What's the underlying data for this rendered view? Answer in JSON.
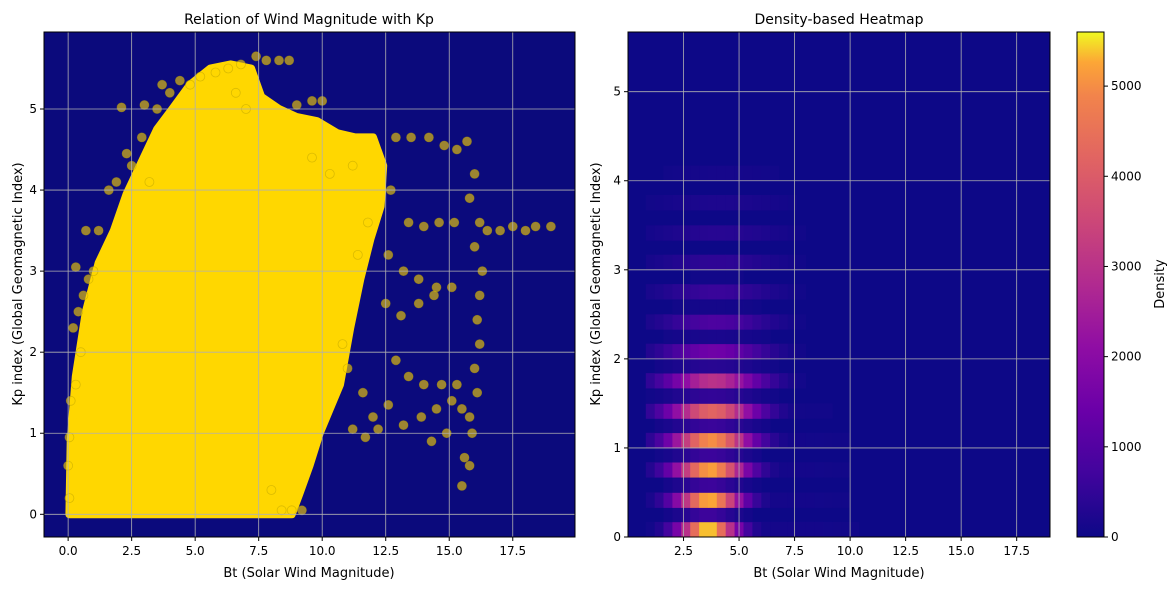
{
  "chart_data": [
    {
      "type": "scatter",
      "title": "Relation of Wind Magnitude with Kp",
      "xlabel": "Bt (Solar Wind Magnitude)",
      "ylabel": "Kp index (Global Geomagnetic Index)",
      "xlim": [
        -0.95,
        19.95
      ],
      "ylim": [
        -0.28,
        5.95
      ],
      "xticks": [
        0.0,
        2.5,
        5.0,
        7.5,
        10.0,
        12.5,
        15.0,
        17.5
      ],
      "xtick_labels": [
        "0.0",
        "2.5",
        "5.0",
        "7.5",
        "10.0",
        "12.5",
        "15.0",
        "17.5"
      ],
      "yticks": [
        0,
        1,
        2,
        3,
        4,
        5
      ],
      "ytick_labels": [
        "0",
        "1",
        "2",
        "3",
        "4",
        "5"
      ],
      "grid": true,
      "background_color": "#0b0a7c",
      "point_color": "#ffd700",
      "series": [
        {
          "main_cloud_outline": [
            [
              0.05,
              0.0
            ],
            [
              0.1,
              0.9
            ],
            [
              0.3,
              1.7
            ],
            [
              0.7,
              2.5
            ],
            [
              1.2,
              3.1
            ],
            [
              1.8,
              3.5
            ],
            [
              2.3,
              3.95
            ],
            [
              2.9,
              4.35
            ],
            [
              3.5,
              4.75
            ],
            [
              4.1,
              5.0
            ],
            [
              4.8,
              5.3
            ],
            [
              5.6,
              5.5
            ],
            [
              6.4,
              5.55
            ],
            [
              7.2,
              5.5
            ],
            [
              7.6,
              5.15
            ],
            [
              8.3,
              5.0
            ],
            [
              9.0,
              4.9
            ],
            [
              9.8,
              4.85
            ],
            [
              10.6,
              4.7
            ],
            [
              11.3,
              4.65
            ],
            [
              12.0,
              4.65
            ],
            [
              12.4,
              4.3
            ],
            [
              12.3,
              3.8
            ],
            [
              11.9,
              3.4
            ],
            [
              11.5,
              2.9
            ],
            [
              11.1,
              2.3
            ],
            [
              10.7,
              1.6
            ],
            [
              10.3,
              1.3
            ],
            [
              9.9,
              1.0
            ],
            [
              9.5,
              0.6
            ],
            [
              9.1,
              0.25
            ],
            [
              8.8,
              0.0
            ]
          ],
          "points": [
            [
              15.7,
              4.6
            ],
            [
              16.0,
              4.2
            ],
            [
              16.2,
              3.6
            ],
            [
              16.3,
              3.0
            ],
            [
              16.1,
              2.4
            ],
            [
              16.0,
              1.8
            ],
            [
              15.8,
              1.2
            ],
            [
              15.6,
              0.7
            ],
            [
              15.5,
              0.35
            ],
            [
              15.8,
              0.6
            ],
            [
              15.9,
              1.0
            ],
            [
              16.1,
              1.5
            ],
            [
              16.2,
              2.1
            ],
            [
              16.2,
              2.7
            ],
            [
              16.0,
              3.3
            ],
            [
              15.8,
              3.9
            ],
            [
              15.3,
              4.5
            ],
            [
              14.8,
              4.55
            ],
            [
              14.2,
              4.65
            ],
            [
              13.5,
              4.65
            ],
            [
              12.9,
              4.65
            ],
            [
              12.7,
              4.0
            ],
            [
              13.4,
              3.6
            ],
            [
              14.0,
              3.55
            ],
            [
              14.6,
              3.6
            ],
            [
              15.2,
              3.6
            ],
            [
              16.5,
              3.5
            ],
            [
              17.0,
              3.5
            ],
            [
              17.5,
              3.55
            ],
            [
              18.0,
              3.5
            ],
            [
              18.4,
              3.55
            ],
            [
              19.0,
              3.55
            ],
            [
              12.6,
              3.2
            ],
            [
              13.2,
              3.0
            ],
            [
              13.8,
              2.9
            ],
            [
              14.5,
              2.8
            ],
            [
              15.1,
              2.8
            ],
            [
              12.5,
              2.6
            ],
            [
              13.1,
              2.45
            ],
            [
              13.8,
              2.6
            ],
            [
              14.4,
              2.7
            ],
            [
              12.9,
              1.9
            ],
            [
              13.4,
              1.7
            ],
            [
              14.0,
              1.6
            ],
            [
              14.7,
              1.6
            ],
            [
              15.3,
              1.6
            ],
            [
              11.6,
              1.5
            ],
            [
              12.0,
              1.2
            ],
            [
              12.6,
              1.35
            ],
            [
              13.2,
              1.1
            ],
            [
              13.9,
              1.2
            ],
            [
              14.5,
              1.3
            ],
            [
              15.1,
              1.4
            ],
            [
              15.5,
              1.3
            ],
            [
              14.9,
              1.0
            ],
            [
              14.3,
              0.9
            ],
            [
              12.2,
              1.05
            ],
            [
              11.7,
              0.95
            ],
            [
              11.2,
              1.05
            ],
            [
              10.8,
              2.1
            ],
            [
              11.0,
              1.8
            ],
            [
              11.8,
              3.6
            ],
            [
              11.4,
              3.2
            ],
            [
              11.2,
              4.3
            ],
            [
              10.3,
              4.2
            ],
            [
              9.6,
              4.4
            ],
            [
              9.0,
              5.05
            ],
            [
              9.6,
              5.1
            ],
            [
              10.0,
              5.1
            ],
            [
              8.7,
              5.6
            ],
            [
              8.3,
              5.6
            ],
            [
              7.8,
              5.6
            ],
            [
              7.4,
              5.65
            ],
            [
              6.8,
              5.55
            ],
            [
              6.3,
              5.5
            ],
            [
              5.8,
              5.45
            ],
            [
              5.2,
              5.4
            ],
            [
              4.8,
              5.3
            ],
            [
              4.4,
              5.35
            ],
            [
              3.7,
              5.3
            ],
            [
              3.5,
              5.0
            ],
            [
              3.0,
              5.05
            ],
            [
              2.1,
              5.02
            ],
            [
              2.3,
              4.45
            ],
            [
              2.5,
              4.3
            ],
            [
              3.2,
              4.1
            ],
            [
              2.9,
              4.65
            ],
            [
              4.0,
              5.2
            ],
            [
              1.6,
              4.0
            ],
            [
              1.9,
              4.1
            ],
            [
              1.2,
              3.5
            ],
            [
              0.7,
              3.5
            ],
            [
              0.3,
              3.05
            ],
            [
              0.6,
              2.7
            ],
            [
              0.4,
              2.5
            ],
            [
              0.2,
              2.3
            ],
            [
              0.8,
              2.9
            ],
            [
              1.0,
              3.0
            ],
            [
              0.5,
              2.0
            ],
            [
              0.3,
              1.6
            ],
            [
              0.1,
              1.4
            ],
            [
              0.05,
              0.95
            ],
            [
              0.0,
              0.6
            ],
            [
              0.05,
              0.2
            ],
            [
              8.4,
              0.05
            ],
            [
              8.0,
              0.3
            ],
            [
              8.8,
              0.05
            ],
            [
              9.2,
              0.05
            ],
            [
              6.6,
              5.2
            ],
            [
              7.0,
              5.0
            ]
          ]
        }
      ]
    },
    {
      "type": "heatmap",
      "title": "Density-based Heatmap",
      "xlabel": "Bt (Solar Wind Magnitude)",
      "ylabel": "Kp index (Global Geomagnetic Index)",
      "xlim": [
        0.0,
        19.0
      ],
      "ylim": [
        0.0,
        5.67
      ],
      "xticks": [
        2.5,
        5.0,
        7.5,
        10.0,
        12.5,
        15.0,
        17.5
      ],
      "xtick_labels": [
        "2.5",
        "5.0",
        "7.5",
        "10.0",
        "12.5",
        "15.0",
        "17.5"
      ],
      "yticks": [
        0,
        1,
        2,
        3,
        4,
        5
      ],
      "ytick_labels": [
        "0",
        "1",
        "2",
        "3",
        "4",
        "5"
      ],
      "grid": true,
      "cmap": "plasma",
      "vmin": 0,
      "vmax": 5600,
      "colorbar": {
        "label": "Density",
        "ticks": [
          0,
          1000,
          2000,
          3000,
          4000,
          5000
        ],
        "tick_labels": [
          "0",
          "1000",
          "2000",
          "3000",
          "4000",
          "5000"
        ]
      },
      "bin_width": 0.4,
      "kp_rows": [
        0.0,
        0.33,
        0.67,
        1.0,
        1.33,
        1.67,
        2.0,
        2.33,
        2.67,
        3.0,
        3.33,
        3.67,
        4.0,
        4.33,
        4.67
      ],
      "peak_density": [
        5500,
        5300,
        5200,
        5000,
        4200,
        3000,
        1500,
        900,
        600,
        450,
        350,
        220,
        120,
        60,
        20
      ]
    }
  ]
}
